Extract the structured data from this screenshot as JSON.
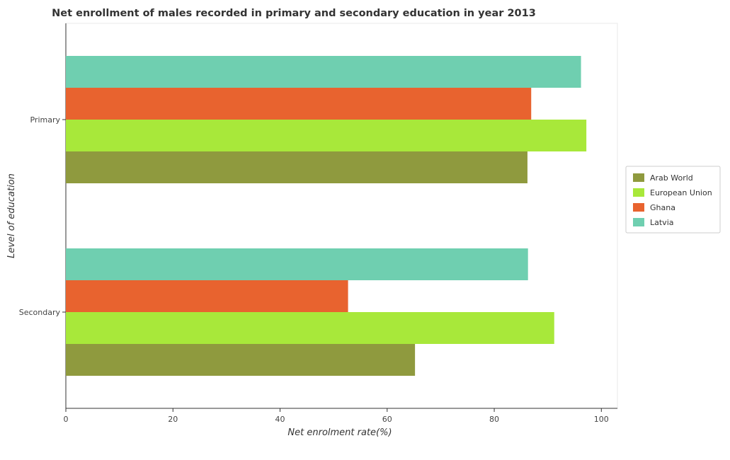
{
  "chart_data": {
    "type": "bar",
    "orientation": "horizontal",
    "title": "Net enrollment of males recorded in primary and secondary education in year 2013",
    "xlabel": "Net enrolment rate(%)",
    "ylabel": "Level of education",
    "xlim": [
      0,
      103
    ],
    "xticks": [
      0,
      20,
      40,
      60,
      80,
      100
    ],
    "categories": [
      "Primary",
      "Secondary"
    ],
    "series": [
      {
        "name": "Arab World",
        "color": "#8f9a3e",
        "values": [
          86.2,
          65.2
        ]
      },
      {
        "name": "European Union",
        "color": "#a8e83a",
        "values": [
          97.2,
          91.2
        ]
      },
      {
        "name": "Ghana",
        "color": "#e8632f",
        "values": [
          86.9,
          52.7
        ]
      },
      {
        "name": "Latvia",
        "color": "#6fcfb0",
        "values": [
          96.2,
          86.3
        ]
      }
    ],
    "legend": {
      "placement": "right"
    },
    "grid": false
  }
}
